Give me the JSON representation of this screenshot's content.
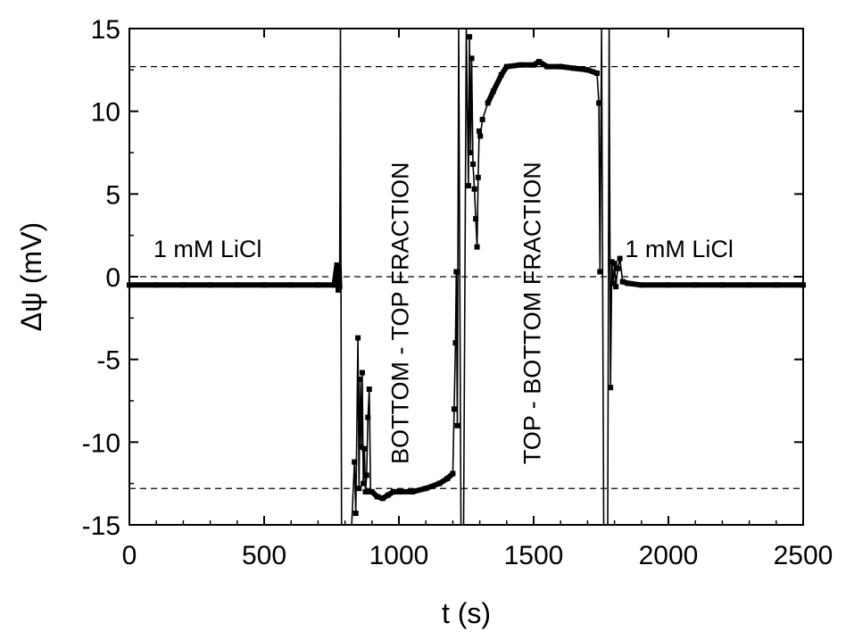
{
  "chart_data": {
    "type": "line",
    "title": "",
    "xlabel": "t (s)",
    "ylabel": "Δψ (mV)",
    "xlim": [
      0,
      2500
    ],
    "ylim": [
      -15,
      15
    ],
    "x_major_ticks": [
      0,
      500,
      1000,
      1500,
      2000,
      2500
    ],
    "x_tick_labels": [
      "0",
      "500",
      "1000",
      "1500",
      "2000",
      "2500"
    ],
    "y_major_ticks": [
      -15,
      -10,
      -5,
      0,
      5,
      10,
      15
    ],
    "y_tick_labels": [
      "-15",
      "-10",
      "-5",
      "0",
      "5",
      "10",
      "15"
    ],
    "grid": false,
    "legend": "none",
    "reference_lines": [
      {
        "y": 12.7,
        "style": "dashed"
      },
      {
        "y": 0.0,
        "style": "dashed"
      },
      {
        "y": -12.8,
        "style": "dashed"
      }
    ],
    "series": [
      {
        "marker": "square",
        "color": "#000000",
        "points": [
          [
            0,
            -0.5
          ],
          [
            100,
            -0.5
          ],
          [
            200,
            -0.5
          ],
          [
            300,
            -0.5
          ],
          [
            400,
            -0.5
          ],
          [
            500,
            -0.5
          ],
          [
            600,
            -0.5
          ],
          [
            700,
            -0.5
          ],
          [
            760,
            -0.5
          ],
          [
            770,
            0.7
          ],
          [
            775,
            -0.8
          ],
          [
            778,
            0.5
          ],
          [
            780,
            -0.6
          ],
          [
            783,
            15
          ],
          [
            787,
            -15
          ],
          [
            800,
            -15
          ],
          [
            825,
            -15
          ],
          [
            835,
            -11.2
          ],
          [
            840,
            -14.3
          ],
          [
            848,
            -3.7
          ],
          [
            852,
            -12.8
          ],
          [
            856,
            -6.2
          ],
          [
            860,
            -10.3
          ],
          [
            864,
            -5.8
          ],
          [
            868,
            -12.5
          ],
          [
            872,
            -10.4
          ],
          [
            876,
            -13.0
          ],
          [
            880,
            -12.0
          ],
          [
            885,
            -8.5
          ],
          [
            890,
            -6.8
          ],
          [
            895,
            -13.0
          ],
          [
            900,
            -13.0
          ],
          [
            920,
            -13.3
          ],
          [
            940,
            -13.4
          ],
          [
            960,
            -13.2
          ],
          [
            980,
            -13.0
          ],
          [
            1000,
            -13.0
          ],
          [
            1050,
            -13.0
          ],
          [
            1100,
            -12.8
          ],
          [
            1150,
            -12.5
          ],
          [
            1180,
            -12.2
          ],
          [
            1200,
            -11.9
          ],
          [
            1205,
            -8.0
          ],
          [
            1210,
            -4.0
          ],
          [
            1213,
            0.3
          ],
          [
            1217,
            -9.0
          ],
          [
            1222,
            15
          ],
          [
            1230,
            -15
          ],
          [
            1240,
            -15
          ],
          [
            1250,
            15
          ],
          [
            1258,
            5.5
          ],
          [
            1262,
            14.5
          ],
          [
            1266,
            7.5
          ],
          [
            1270,
            13.2
          ],
          [
            1275,
            6.8
          ],
          [
            1280,
            5.3
          ],
          [
            1285,
            3.5
          ],
          [
            1290,
            1.8
          ],
          [
            1294,
            6.0
          ],
          [
            1298,
            8.8
          ],
          [
            1302,
            8.5
          ],
          [
            1310,
            9.5
          ],
          [
            1330,
            10.5
          ],
          [
            1350,
            11.2
          ],
          [
            1380,
            12.2
          ],
          [
            1400,
            12.7
          ],
          [
            1450,
            12.8
          ],
          [
            1500,
            12.8
          ],
          [
            1520,
            13.0
          ],
          [
            1550,
            12.7
          ],
          [
            1600,
            12.7
          ],
          [
            1650,
            12.6
          ],
          [
            1700,
            12.5
          ],
          [
            1735,
            12.3
          ],
          [
            1742,
            10.5
          ],
          [
            1746,
            0.3
          ],
          [
            1752,
            15
          ],
          [
            1760,
            -15
          ],
          [
            1775,
            -15
          ],
          [
            1780,
            15
          ],
          [
            1785,
            -6.7
          ],
          [
            1790,
            0.9
          ],
          [
            1795,
            -0.4
          ],
          [
            1800,
            0.8
          ],
          [
            1805,
            -0.6
          ],
          [
            1812,
            0.5
          ],
          [
            1820,
            1.1
          ],
          [
            1830,
            -0.3
          ],
          [
            1850,
            -0.4
          ],
          [
            1900,
            -0.5
          ],
          [
            2000,
            -0.5
          ],
          [
            2100,
            -0.5
          ],
          [
            2200,
            -0.5
          ],
          [
            2300,
            -0.5
          ],
          [
            2400,
            -0.5
          ],
          [
            2500,
            -0.5
          ]
        ]
      }
    ],
    "annotations": [
      {
        "text": "1 mM LiCl",
        "x": 290,
        "y": 1.2,
        "rotation": 0
      },
      {
        "text": "BOTTOM - TOP FRACTION",
        "x": 1035,
        "y": -2.2,
        "rotation": -90
      },
      {
        "text": "TOP - BOTTOM FRACTION",
        "x": 1525,
        "y": -2.2,
        "rotation": -90
      },
      {
        "text": "1 mM LiCl",
        "x": 2040,
        "y": 1.2,
        "rotation": 0
      }
    ]
  }
}
